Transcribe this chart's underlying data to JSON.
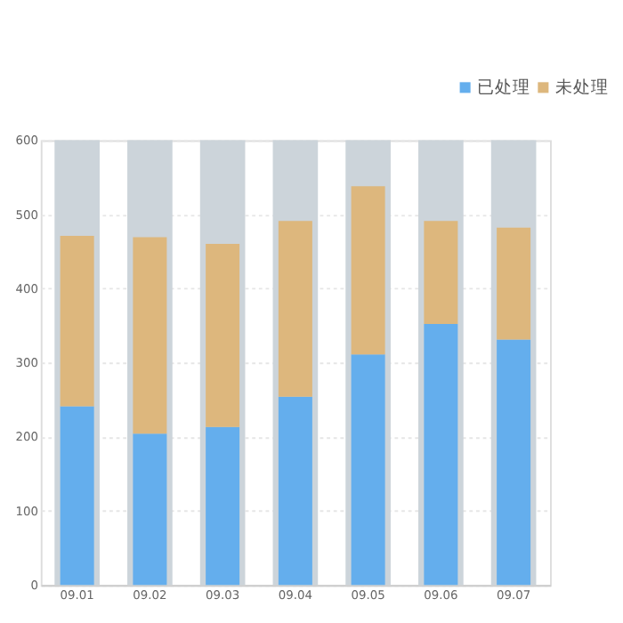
{
  "chart_data": {
    "type": "bar",
    "stacked": true,
    "categories": [
      "09.01",
      "09.02",
      "09.03",
      "09.04",
      "09.05",
      "09.06",
      "09.07"
    ],
    "series": [
      {
        "name": "已处理",
        "color": "#64aeed",
        "values": [
          241,
          204,
          213,
          254,
          311,
          352,
          331
        ]
      },
      {
        "name": "未处理",
        "color": "#ddb77d",
        "values": [
          230,
          265,
          247,
          237,
          227,
          139,
          151
        ]
      }
    ],
    "ylim": [
      0,
      600
    ],
    "yticks": [
      0,
      100,
      200,
      300,
      400,
      500,
      600
    ],
    "grid": "y",
    "legend": "top right"
  }
}
